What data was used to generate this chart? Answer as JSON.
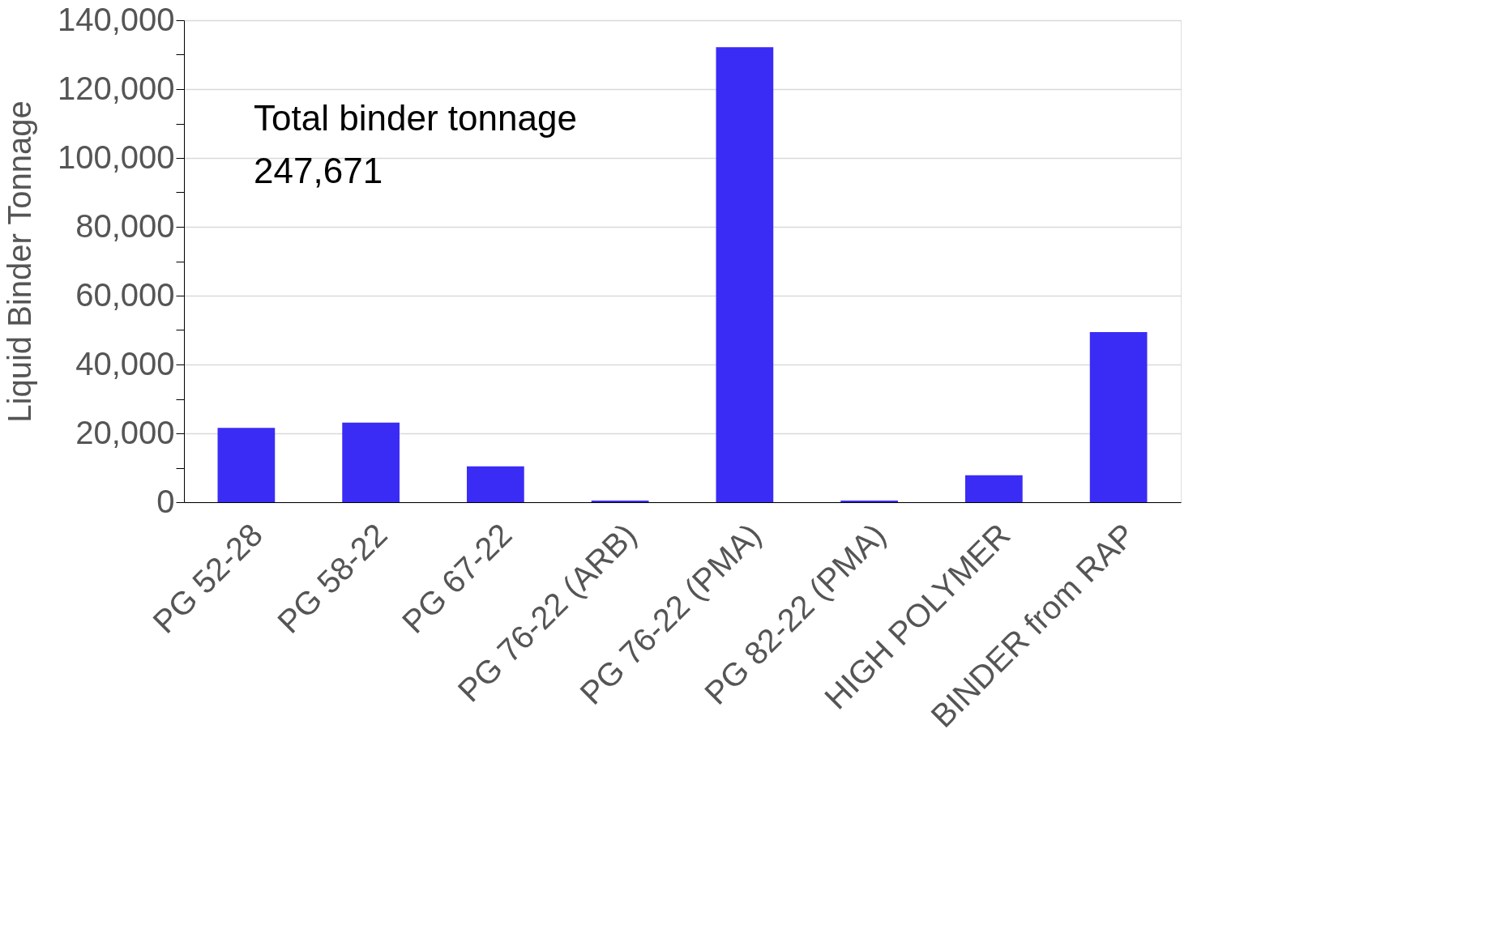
{
  "chart_data": {
    "type": "bar",
    "ylabel": "Liquid Binder Tonnage",
    "categories": [
      "PG 52-28",
      "PG 58-22",
      "PG 67-22",
      "PG 76-22 (ARB)",
      "PG 76-22 (PMA)",
      "PG 82-22 (PMA)",
      "HIGH POLYMER",
      "BINDER from RAP"
    ],
    "values": [
      21600,
      23100,
      10400,
      500,
      132200,
      500,
      7800,
      49400
    ],
    "color": "#3a2cf5",
    "ylim": [
      0,
      140000
    ],
    "yticks": [
      {
        "value": 0,
        "label": "0"
      },
      {
        "value": 10000,
        "label": null
      },
      {
        "value": 20000,
        "label": "20,000"
      },
      {
        "value": 30000,
        "label": null
      },
      {
        "value": 40000,
        "label": "40,000"
      },
      {
        "value": 50000,
        "label": null
      },
      {
        "value": 60000,
        "label": "60,000"
      },
      {
        "value": 70000,
        "label": null
      },
      {
        "value": 80000,
        "label": "80,000"
      },
      {
        "value": 90000,
        "label": null
      },
      {
        "value": 100000,
        "label": "100,000"
      },
      {
        "value": 110000,
        "label": null
      },
      {
        "value": 120000,
        "label": "120,000"
      },
      {
        "value": 130000,
        "label": null
      },
      {
        "value": 140000,
        "label": "140,000"
      }
    ],
    "grid": "y",
    "annotations": [
      "Total binder tonnage\n247,671"
    ]
  }
}
